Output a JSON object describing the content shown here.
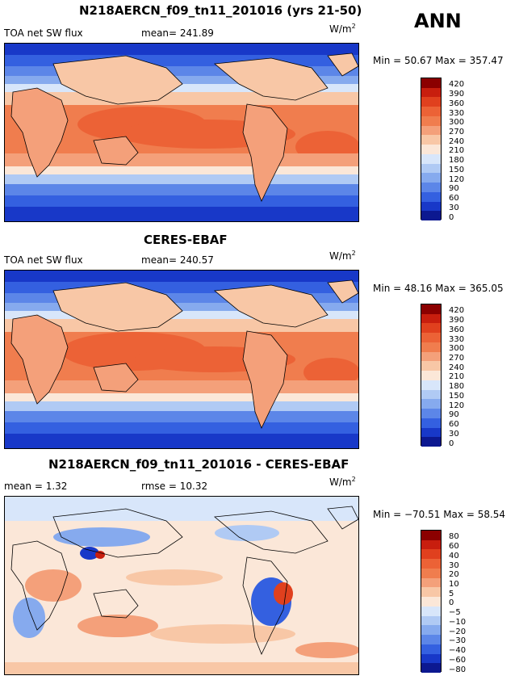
{
  "season": "ANN",
  "panels": [
    {
      "title": "N218AERCN_f09_tn11_201016 (yrs 21-50)",
      "left_label": "TOA net SW flux",
      "stat_label": "mean= 241.89",
      "units_base": "W/m",
      "units_exp": "2",
      "min_max": "Min =  50.67 Max = 357.47",
      "colorbar": {
        "levels": [
          "420",
          "390",
          "360",
          "330",
          "300",
          "270",
          "240",
          "210",
          "180",
          "150",
          "120",
          "90",
          "60",
          "30",
          "0"
        ],
        "colors": [
          "#8b0000",
          "#c81e0e",
          "#e0401e",
          "#ec6236",
          "#f07d4e",
          "#f4a07a",
          "#f8c7a6",
          "#fbe7d8",
          "#d8e6fa",
          "#b0caf4",
          "#86aaee",
          "#5c86e8",
          "#3460e0",
          "#1838c8",
          "#0c1890"
        ]
      }
    },
    {
      "title": "CERES-EBAF",
      "left_label": "TOA net SW flux",
      "stat_label": "mean= 240.57",
      "units_base": "W/m",
      "units_exp": "2",
      "min_max": "Min =  48.16 Max = 365.05",
      "colorbar": {
        "levels": [
          "420",
          "390",
          "360",
          "330",
          "300",
          "270",
          "240",
          "210",
          "180",
          "150",
          "120",
          "90",
          "60",
          "30",
          "0"
        ],
        "colors": [
          "#8b0000",
          "#c81e0e",
          "#e0401e",
          "#ec6236",
          "#f07d4e",
          "#f4a07a",
          "#f8c7a6",
          "#fbe7d8",
          "#d8e6fa",
          "#b0caf4",
          "#86aaee",
          "#5c86e8",
          "#3460e0",
          "#1838c8",
          "#0c1890"
        ]
      }
    },
    {
      "title": "N218AERCN_f09_tn11_201016 - CERES-EBAF",
      "left_label": "mean =   1.32",
      "stat_label": "rmse =   10.32",
      "units_base": "W/m",
      "units_exp": "2",
      "min_max": "Min = −70.51 Max =  58.54",
      "colorbar": {
        "levels": [
          "80",
          "60",
          "40",
          "30",
          "20",
          "10",
          "5",
          "0",
          "−5",
          "−10",
          "−20",
          "−30",
          "−40",
          "−60",
          "−80"
        ],
        "colors": [
          "#8b0000",
          "#c81e0e",
          "#e0401e",
          "#ec6236",
          "#f07d4e",
          "#f4a07a",
          "#f8c7a6",
          "#fbe7d8",
          "#d8e6fa",
          "#b0caf4",
          "#86aaee",
          "#5c86e8",
          "#3460e0",
          "#1838c8",
          "#0c1890"
        ]
      }
    }
  ]
}
